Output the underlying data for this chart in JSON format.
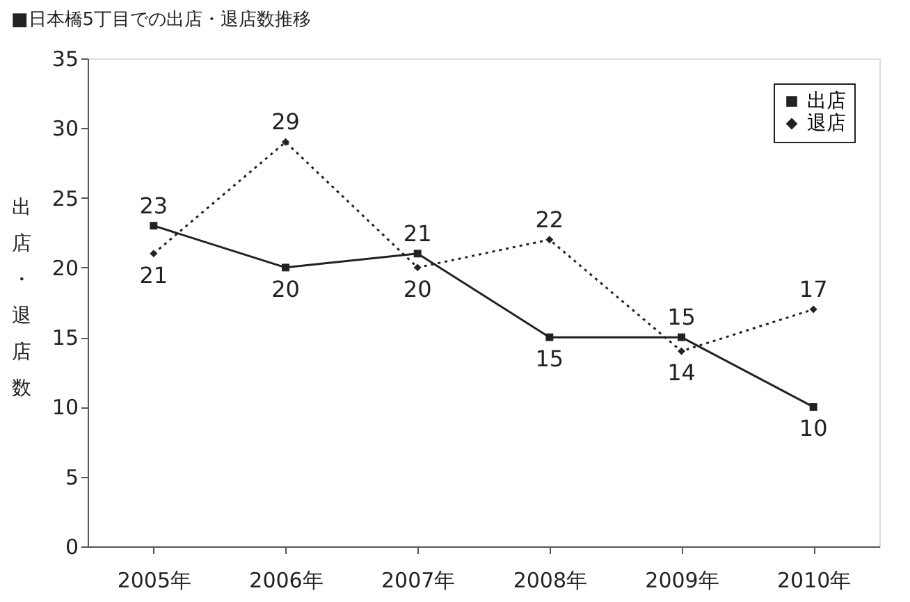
{
  "chart_data": {
    "type": "line",
    "title": "■日本橋5丁目での出店・退店数推移",
    "ylabel": "出店・退店数",
    "categories": [
      "2005年",
      "2006年",
      "2007年",
      "2008年",
      "2009年",
      "2010年"
    ],
    "series": [
      {
        "name": "出店",
        "color": "#222222",
        "marker": "square",
        "line_style": "solid",
        "values": [
          23,
          20,
          21,
          15,
          15,
          10
        ]
      },
      {
        "name": "退店",
        "color": "#222222",
        "marker": "diamond",
        "line_style": "dotted",
        "values": [
          21,
          29,
          20,
          22,
          14,
          17
        ]
      }
    ],
    "ylim": [
      0,
      35
    ],
    "yticks": [
      0,
      5,
      10,
      15,
      20,
      25,
      30,
      35
    ],
    "grid": false,
    "legend": "top right",
    "data_labels": true
  }
}
